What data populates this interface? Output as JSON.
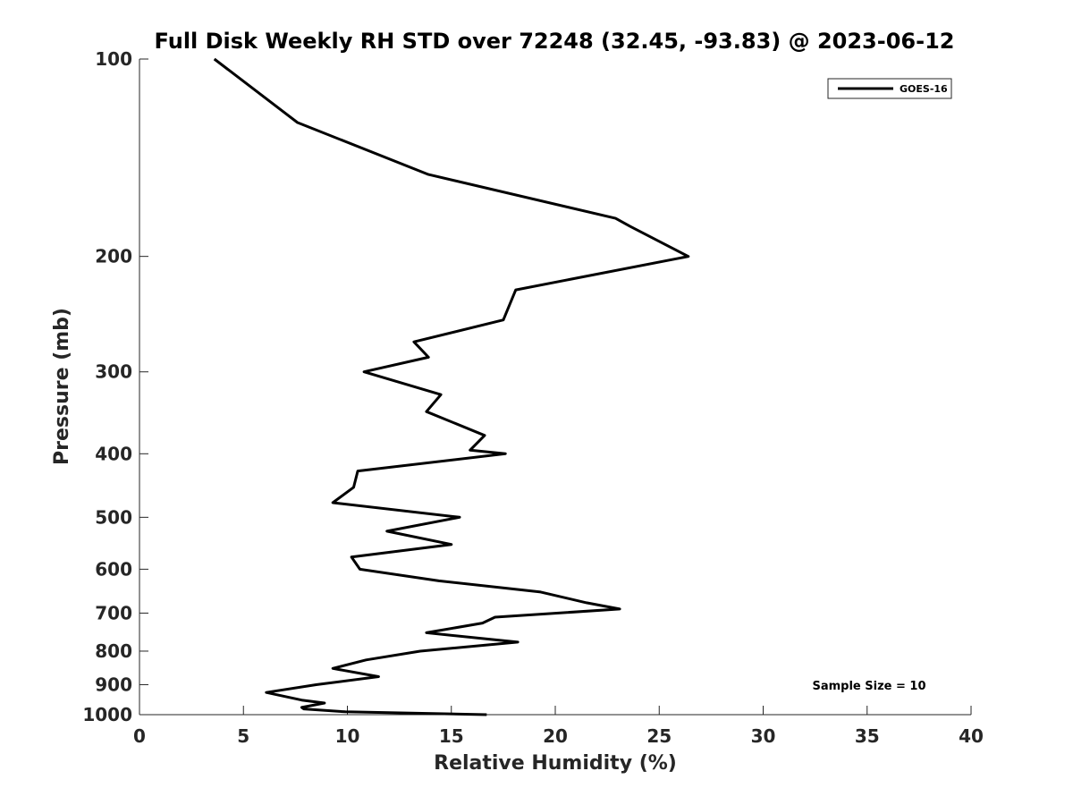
{
  "chart_data": {
    "type": "line",
    "title": "Full Disk Weekly RH STD over 72248 (32.45, -93.83) @ 2023-06-12",
    "xlabel": "Relative Humidity (%)",
    "ylabel": "Pressure (mb)",
    "xlim": [
      0,
      40
    ],
    "ylim": [
      100,
      1000
    ],
    "yscale": "log",
    "yreversed": true,
    "grid": false,
    "legend_position": "top-right",
    "xticks": [
      0,
      5,
      10,
      15,
      20,
      25,
      30,
      35,
      40
    ],
    "yticks": [
      100,
      200,
      300,
      400,
      500,
      600,
      700,
      800,
      900,
      1000
    ],
    "series": [
      {
        "name": "GOES-16",
        "color": "#000000",
        "x": [
          3.6,
          7.6,
          13.9,
          22.9,
          23.6,
          26.4,
          18.1,
          17.5,
          13.2,
          13.9,
          10.8,
          14.5,
          13.8,
          16.6,
          15.9,
          17.6,
          10.5,
          10.3,
          9.3,
          15.4,
          11.9,
          15.0,
          10.2,
          10.6,
          14.4,
          19.3,
          21.5,
          23.1,
          17.1,
          16.5,
          13.8,
          18.2,
          13.5,
          10.9,
          9.3,
          11.5,
          8.5,
          6.1,
          7.8,
          8.9,
          7.8,
          7.9,
          9.9,
          16.7
        ],
        "y": [
          100,
          125,
          150,
          175,
          180,
          200,
          225,
          250,
          270,
          285,
          300,
          325,
          345,
          375,
          395,
          400,
          425,
          450,
          475,
          500,
          525,
          550,
          575,
          600,
          625,
          650,
          675,
          690,
          710,
          725,
          750,
          775,
          800,
          825,
          850,
          875,
          900,
          925,
          950,
          960,
          975,
          980,
          990,
          1000
        ]
      }
    ],
    "annotations": [
      "Sample Size = 10"
    ]
  }
}
